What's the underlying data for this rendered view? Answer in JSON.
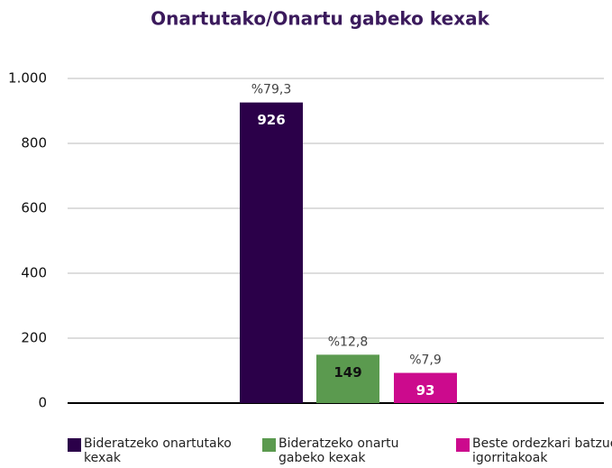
{
  "chart_data": {
    "type": "bar",
    "title": "Onartutako/Onartu gabeko kexak",
    "categories": [
      null
    ],
    "series": [
      {
        "name": "Bideratzeko onartutako kexak",
        "color": "#2b0049",
        "values": [
          926
        ]
      },
      {
        "name": "Bideratzeko onartu gabeko kexak",
        "color": "#5b9a4f",
        "values": [
          149
        ]
      },
      {
        "name": "Beste ordezkari batzuei igorritakoak",
        "color": "#cc0a8d",
        "values": [
          93
        ]
      }
    ],
    "annotations": [
      "%79,3",
      "%12,8",
      "%7,9"
    ],
    "ylim": [
      0,
      1000
    ],
    "yticks": [
      0,
      200,
      400,
      600,
      800,
      {
        "value": 1000,
        "label": "1.000"
      }
    ],
    "grid": true,
    "legend": "bottom"
  }
}
